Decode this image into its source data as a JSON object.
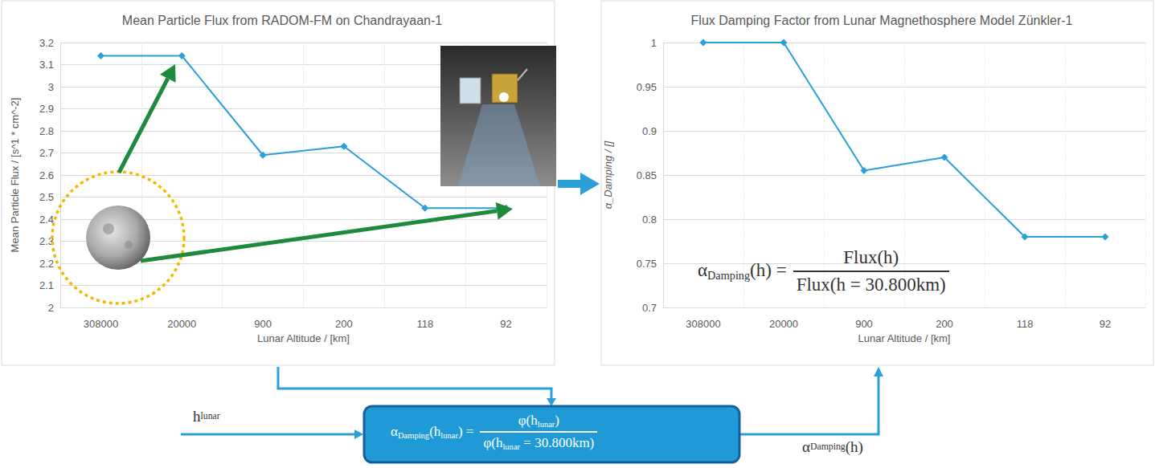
{
  "chart_data": [
    {
      "type": "line",
      "title": "Mean Particle Flux from RADOM-FM on Chandrayaan-1",
      "x_label": "Lunar Altitude / [km]",
      "y_label": "Mean Particle Flux / [s^1 * cm^-2]",
      "categories": [
        "308000",
        "20000",
        "900",
        "200",
        "118",
        "92"
      ],
      "values": [
        3.14,
        3.14,
        2.69,
        2.73,
        2.45,
        2.45
      ],
      "color": "#2a9fd8",
      "marker": "diamond",
      "ylim": [
        2,
        3.2
      ],
      "yticks": [
        2,
        2.1,
        2.2,
        2.3,
        2.4,
        2.5,
        2.6,
        2.7,
        2.8,
        2.9,
        3,
        3.1,
        3.2
      ],
      "grid": true
    },
    {
      "type": "line",
      "title": "Flux Damping Factor from Lunar Magnethosphere Model Zünkler-1",
      "x_label": "Lunar Altitude / [km]",
      "y_label": "α_Damping / []",
      "categories": [
        "308000",
        "20000",
        "900",
        "200",
        "118",
        "92"
      ],
      "values": [
        1,
        1,
        0.855,
        0.87,
        0.78,
        0.78
      ],
      "color": "#2a9fd8",
      "marker": "diamond",
      "ylim": [
        0.7,
        1
      ],
      "yticks": [
        0.7,
        0.75,
        0.8,
        0.85,
        0.9,
        0.95,
        1
      ],
      "grid": true,
      "annotation": {
        "lhs": [
          {
            "t": "α"
          },
          {
            "sub": "Damping"
          },
          {
            "t": "(h) ="
          }
        ],
        "numerator": [
          {
            "t": "Flux(h)"
          }
        ],
        "denominator": [
          {
            "t": "Flux(h = 30.800km)"
          }
        ]
      }
    }
  ],
  "diagram": {
    "input": [
      {
        "t": "h"
      },
      {
        "sub": "lunar"
      }
    ],
    "box": {
      "lhs": [
        {
          "t": "α"
        },
        {
          "sub": "Damping"
        },
        {
          "t": "(h"
        },
        {
          "sub": "lunar"
        },
        {
          "t": ") ="
        }
      ],
      "numerator": [
        {
          "t": "φ(h"
        },
        {
          "sub": "lunar"
        },
        {
          "t": ")"
        }
      ],
      "denominator": [
        {
          "t": "φ(h"
        },
        {
          "sub": "lunar"
        },
        {
          "t": " = 30.800km)"
        }
      ]
    },
    "output": [
      {
        "t": "α"
      },
      {
        "sub": "Damping"
      },
      {
        "t": "(h)"
      }
    ]
  }
}
